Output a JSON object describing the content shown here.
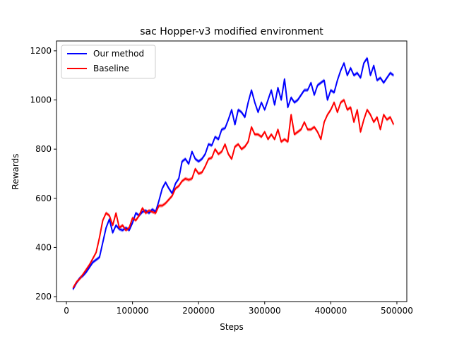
{
  "chart_data": {
    "type": "line",
    "title": "sac Hopper-v3 modified environment",
    "xlabel": "Steps",
    "ylabel": "Rewards",
    "xlim": [
      -15000,
      515000
    ],
    "ylim": [
      180,
      1240
    ],
    "xticks": [
      0,
      100000,
      200000,
      300000,
      400000,
      500000
    ],
    "xtick_labels": [
      "0",
      "100000",
      "200000",
      "300000",
      "400000",
      "500000"
    ],
    "yticks": [
      200,
      400,
      600,
      800,
      1000,
      1200
    ],
    "ytick_labels": [
      "200",
      "400",
      "600",
      "800",
      "1000",
      "1200"
    ],
    "grid": false,
    "legend_position": "top-left",
    "x": [
      10000,
      15000,
      20000,
      25000,
      30000,
      35000,
      40000,
      45000,
      50000,
      55000,
      60000,
      65000,
      70000,
      75000,
      80000,
      85000,
      90000,
      95000,
      100000,
      105000,
      110000,
      115000,
      120000,
      125000,
      130000,
      135000,
      140000,
      145000,
      150000,
      155000,
      160000,
      165000,
      170000,
      175000,
      180000,
      185000,
      190000,
      195000,
      200000,
      205000,
      210000,
      215000,
      220000,
      225000,
      230000,
      235000,
      240000,
      245000,
      250000,
      255000,
      260000,
      265000,
      270000,
      275000,
      280000,
      285000,
      290000,
      295000,
      300000,
      305000,
      310000,
      315000,
      320000,
      325000,
      330000,
      335000,
      340000,
      345000,
      350000,
      355000,
      360000,
      365000,
      370000,
      375000,
      380000,
      385000,
      390000,
      395000,
      400000,
      405000,
      410000,
      415000,
      420000,
      425000,
      430000,
      435000,
      440000,
      445000,
      450000,
      455000,
      460000,
      465000,
      470000,
      475000,
      480000,
      485000,
      490000,
      495000
    ],
    "series": [
      {
        "name": "Our method",
        "color": "#0000ff",
        "values": [
          230,
          255,
          275,
          285,
          300,
          320,
          340,
          350,
          360,
          420,
          480,
          515,
          460,
          490,
          475,
          470,
          480,
          470,
          500,
          540,
          530,
          545,
          550,
          540,
          555,
          545,
          590,
          640,
          665,
          640,
          620,
          660,
          680,
          750,
          760,
          740,
          790,
          760,
          750,
          760,
          780,
          820,
          815,
          850,
          840,
          880,
          885,
          920,
          960,
          900,
          960,
          950,
          930,
          990,
          1040,
          990,
          950,
          990,
          960,
          1000,
          1040,
          980,
          1050,
          1000,
          1085,
          970,
          1010,
          990,
          1000,
          1020,
          1040,
          1040,
          1070,
          1020,
          1060,
          1070,
          1080,
          1000,
          1040,
          1030,
          1080,
          1120,
          1150,
          1100,
          1130,
          1100,
          1110,
          1090,
          1150,
          1170,
          1100,
          1140,
          1080,
          1090,
          1070,
          1090,
          1110,
          1100
        ]
      },
      {
        "name": "Baseline",
        "color": "#ff0000",
        "values": [
          235,
          258,
          272,
          290,
          310,
          330,
          355,
          380,
          440,
          510,
          540,
          530,
          490,
          540,
          480,
          490,
          470,
          480,
          520,
          510,
          530,
          560,
          540,
          550,
          545,
          540,
          570,
          570,
          580,
          595,
          610,
          640,
          650,
          670,
          680,
          675,
          680,
          720,
          700,
          705,
          730,
          760,
          765,
          800,
          780,
          790,
          820,
          780,
          760,
          810,
          820,
          800,
          810,
          830,
          890,
          860,
          860,
          850,
          870,
          840,
          860,
          840,
          880,
          830,
          840,
          830,
          940,
          860,
          870,
          880,
          910,
          880,
          880,
          890,
          870,
          840,
          910,
          940,
          960,
          990,
          950,
          990,
          1000,
          960,
          970,
          910,
          960,
          870,
          920,
          960,
          940,
          910,
          930,
          880,
          940,
          920,
          930,
          900
        ]
      }
    ]
  }
}
